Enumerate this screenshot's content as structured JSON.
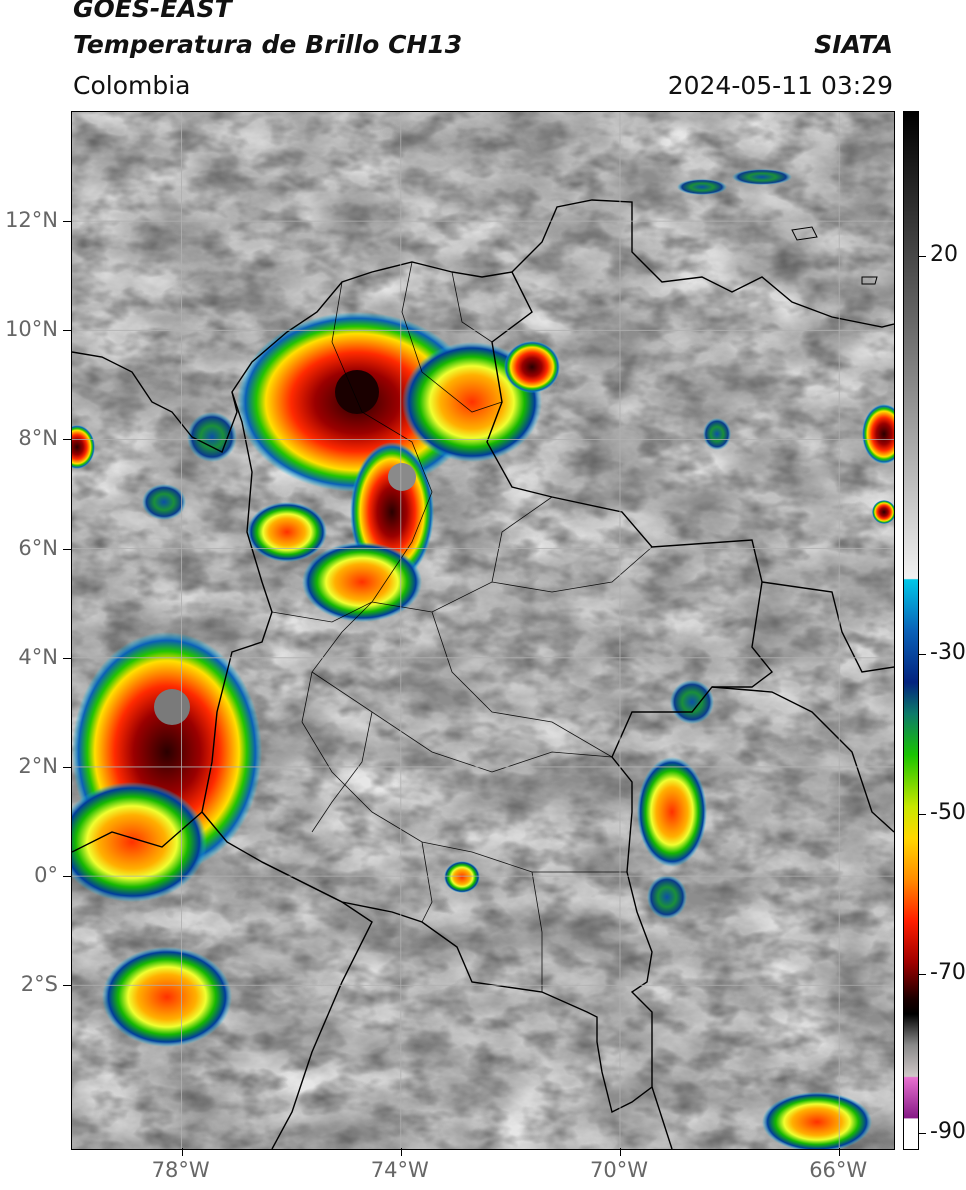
{
  "header": {
    "satellite": "GOES-EAST",
    "product": "Temperatura de Brillo CH13",
    "organization": "SIATA",
    "region": "Colombia",
    "datetime": "2024-05-11 03:29"
  },
  "map": {
    "lon_range": [
      -80,
      -65
    ],
    "lat_range": [
      -5,
      14
    ],
    "lon_ticks": [
      {
        "value": -78,
        "label": "78°W"
      },
      {
        "value": -74,
        "label": "74°W"
      },
      {
        "value": -70,
        "label": "70°W"
      },
      {
        "value": -66,
        "label": "66°W"
      }
    ],
    "lat_ticks": [
      {
        "value": 12,
        "label": "12°N"
      },
      {
        "value": 10,
        "label": "10°N"
      },
      {
        "value": 8,
        "label": "8°N"
      },
      {
        "value": 6,
        "label": "6°N"
      },
      {
        "value": 4,
        "label": "4°N"
      },
      {
        "value": 2,
        "label": "2°N"
      },
      {
        "value": 0,
        "label": "0°"
      },
      {
        "value": -2,
        "label": "2°S"
      }
    ],
    "grid": true
  },
  "colorbar": {
    "range": [
      -92,
      38
    ],
    "ticks": [
      {
        "value": 20,
        "label": "20"
      },
      {
        "value": -30,
        "label": "-30"
      },
      {
        "value": -50,
        "label": "-50"
      },
      {
        "value": -70,
        "label": "-70"
      },
      {
        "value": -90,
        "label": "-90"
      }
    ],
    "colors": [
      "#ffffff",
      "#8b1a89",
      "#e070c8",
      "#bdbdbd",
      "#000000",
      "#8b0000",
      "#ff0000",
      "#ff8c00",
      "#ffd700",
      "#00c000",
      "#003399",
      "#00bfe6",
      "#ffffff",
      "#a0a0a0",
      "#000000"
    ]
  }
}
